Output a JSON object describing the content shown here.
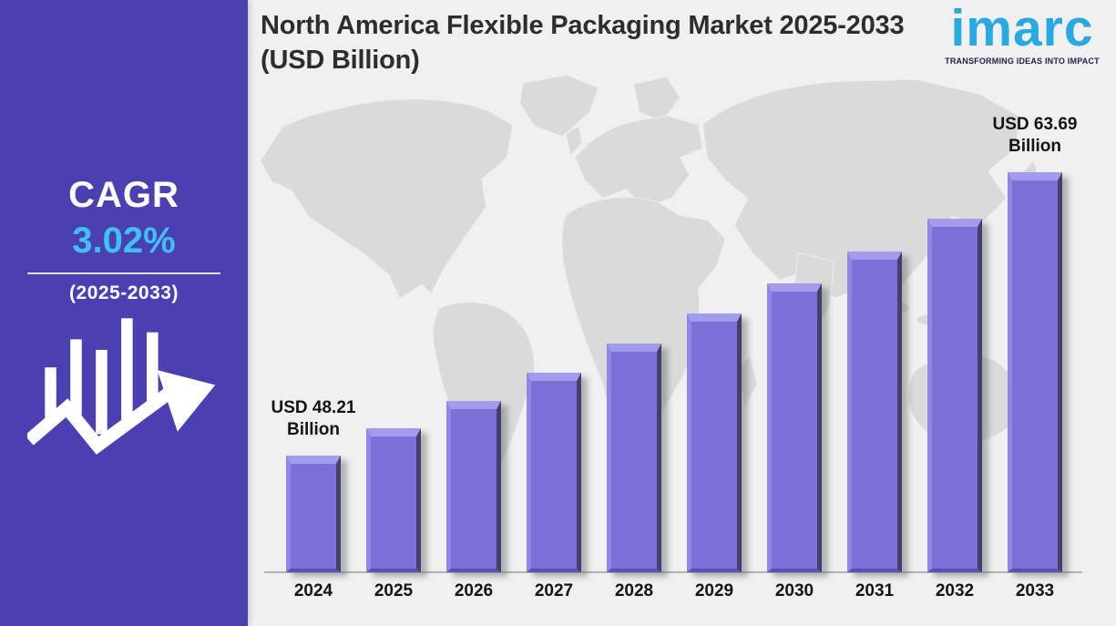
{
  "sidebar": {
    "cagr_label": "CAGR",
    "cagr_value": "3.02%",
    "cagr_period": "(2025-2033)",
    "background_color": "#4b40b1",
    "cagr_value_color": "#3fc0f2"
  },
  "header": {
    "title": "North America Flexible Packaging Market 2025-2033 (USD Billion)"
  },
  "logo": {
    "name": "imarc",
    "tagline": "TRANSFORMING IDEAS INTO IMPACT",
    "brand_color": "#29a9e1"
  },
  "chart_data": {
    "type": "bar",
    "title": "North America Flexible Packaging Market 2025-2033 (USD Billion)",
    "categories": [
      "2024",
      "2025",
      "2026",
      "2027",
      "2028",
      "2029",
      "2030",
      "2031",
      "2032",
      "2033"
    ],
    "values": [
      48.21,
      49.67,
      51.17,
      52.71,
      54.31,
      55.95,
      57.64,
      59.38,
      61.17,
      63.69
    ],
    "value_labels": {
      "2024": "USD 48.21 Billion",
      "2033": "USD 63.69 Billion"
    },
    "cagr": "3.02%",
    "cagr_period": "2025-2033",
    "unit": "USD Billion",
    "ylim": [
      41.8,
      66.5
    ],
    "grid": false,
    "legend": false,
    "xlabel": "",
    "ylabel": "",
    "bar_color": "#7c70d8",
    "bar_bevel_light": "#a39beb",
    "bar_bevel_dark": "#454069",
    "background_color": "#f0f0f0",
    "watermark": "world-map"
  }
}
